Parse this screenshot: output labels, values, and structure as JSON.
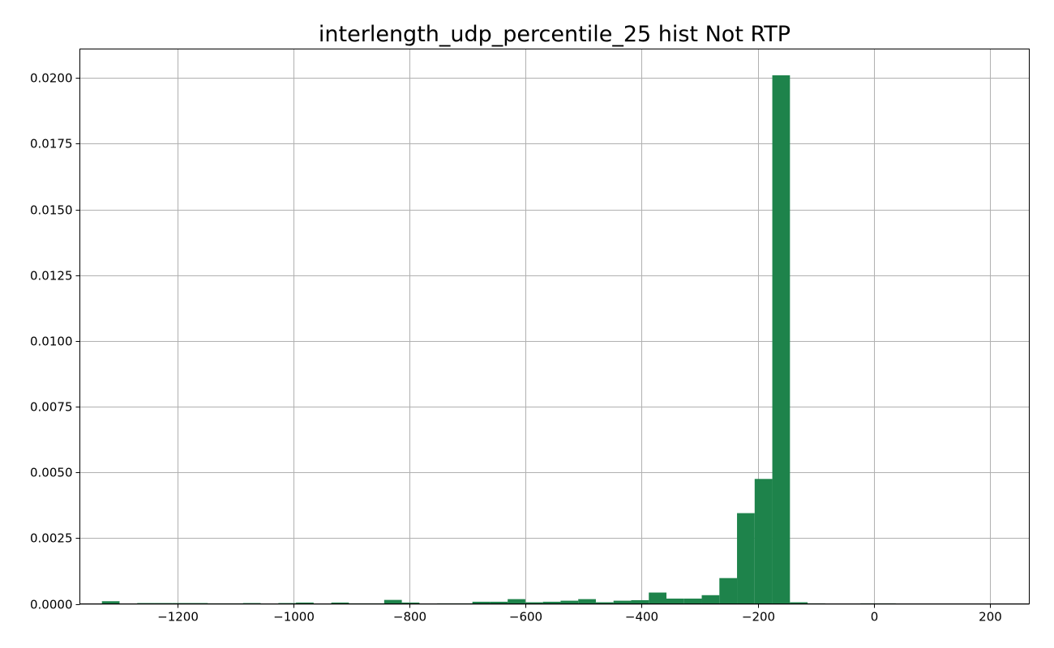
{
  "chart_data": {
    "type": "bar",
    "title": "interlength_udp_percentile_25 hist Not RTP",
    "xlabel": "",
    "ylabel": "",
    "xlim": [
      -1368,
      1268
    ],
    "xlim_note": "",
    "x_range": [
      -1368,
      268
    ],
    "ylim": [
      0,
      0.0211
    ],
    "grid": true,
    "bar_color": "#1e834b",
    "x_ticks": [
      -1200,
      -1000,
      -800,
      -600,
      -400,
      -200,
      0,
      200
    ],
    "x_tick_labels": [
      "−1200",
      "−1000",
      "−800",
      "−600",
      "−400",
      "−200",
      "0",
      "200"
    ],
    "y_ticks": [
      0,
      0.0025,
      0.005,
      0.0075,
      0.01,
      0.0125,
      0.015,
      0.0175,
      0.02
    ],
    "y_tick_labels": [
      "0.0000",
      "0.0025",
      "0.0050",
      "0.0075",
      "0.0100",
      "0.0125",
      "0.0150",
      "0.0175",
      "0.0200"
    ],
    "bin_start": -1330,
    "bin_width": 30.4,
    "values": [
      0.0001,
      0.0,
      3e-05,
      3e-05,
      3e-05,
      3e-05,
      2e-05,
      2e-05,
      3e-05,
      0.0,
      3e-05,
      5e-05,
      0.0,
      5e-05,
      2e-05,
      2e-05,
      0.00015,
      5e-05,
      0.0,
      2e-05,
      2e-05,
      8e-05,
      8e-05,
      0.00018,
      6e-05,
      8e-05,
      0.00012,
      0.00018,
      6e-05,
      0.00012,
      0.00014,
      0.00043,
      0.0002,
      0.0002,
      0.00033,
      0.00098,
      0.00345,
      0.00475,
      0.0201,
      6e-05,
      2e-05,
      0.0,
      0.0,
      2e-05,
      2e-05
    ]
  }
}
